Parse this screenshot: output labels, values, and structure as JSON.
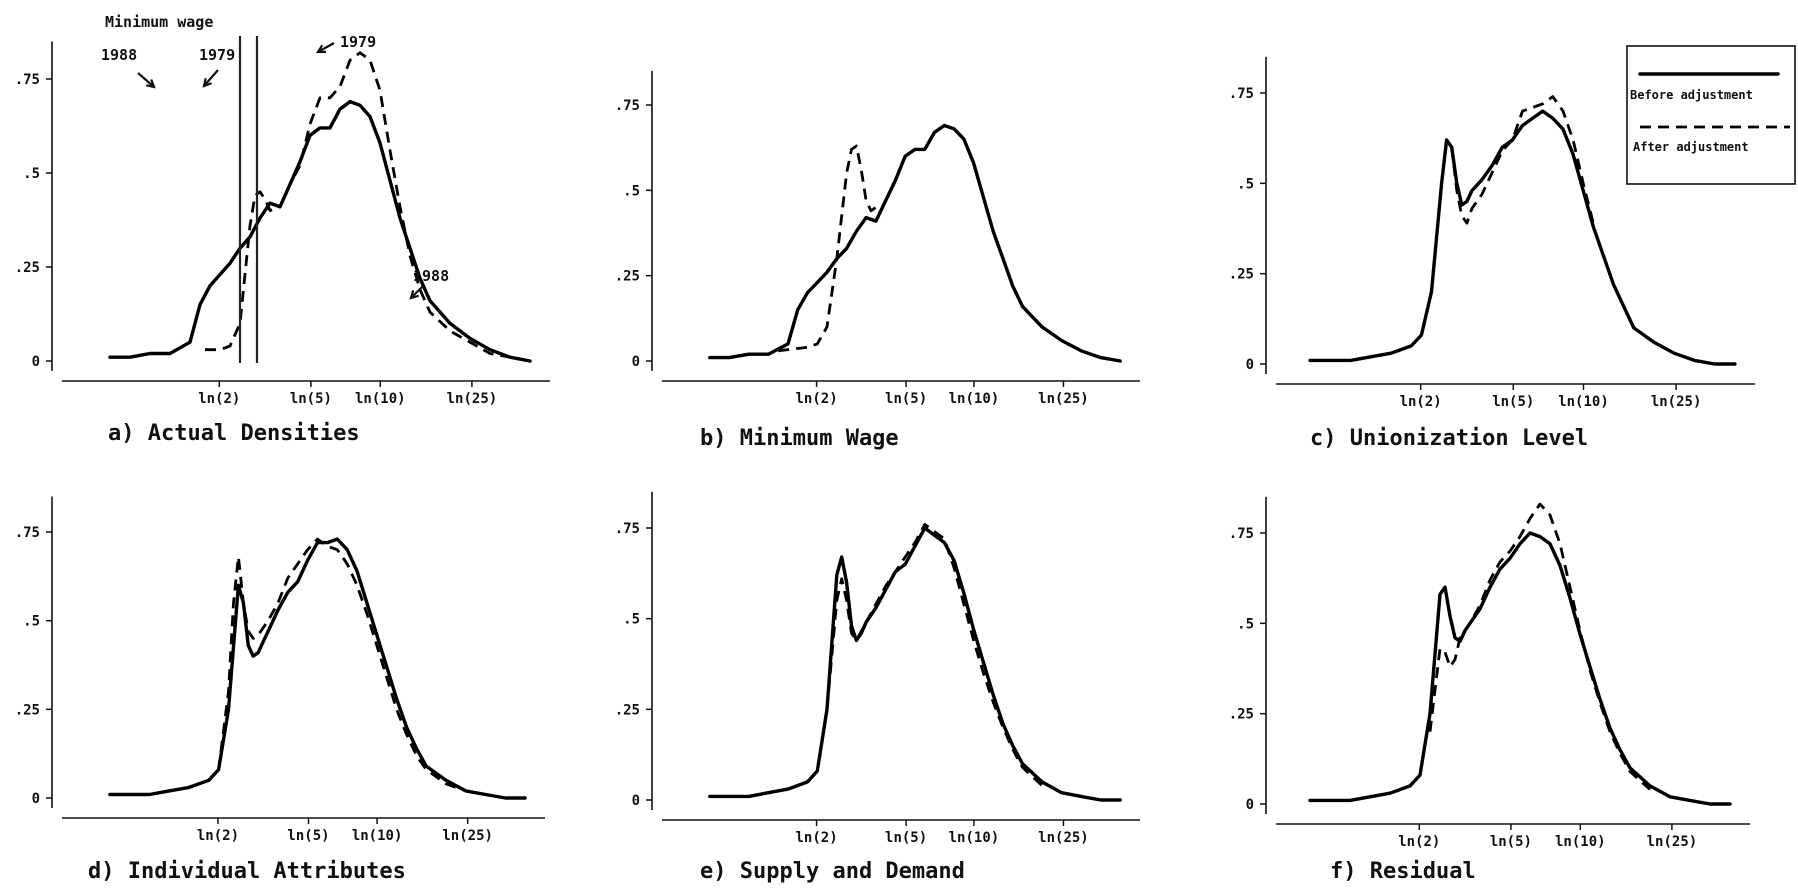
{
  "chart_data": [
    {
      "type": "line",
      "caption": "a) Actual Densities",
      "ylim": [
        0,
        0.85
      ],
      "yticks": [
        {
          "v": 0,
          "label": "0"
        },
        {
          "v": 0.25,
          "label": ".25"
        },
        {
          "v": 0.5,
          "label": ".5"
        },
        {
          "v": 0.75,
          "label": ".75"
        }
      ],
      "xticks": [
        {
          "v": 0.693,
          "label": "ln(2)"
        },
        {
          "v": 1.609,
          "label": "ln(5)"
        },
        {
          "v": 2.303,
          "label": "ln(10)"
        },
        {
          "v": 3.219,
          "label": "ln(25)"
        }
      ],
      "annotations": {
        "top": "Minimum wage",
        "left_year": "1988",
        "right_year": "1979",
        "dashed_year": "1979",
        "solid_year": "1988"
      },
      "min_wage_lines": [
        0.9,
        1.07
      ],
      "series": [
        {
          "style": "solid",
          "x": [
            -0.4,
            -0.2,
            0,
            0.2,
            0.4,
            0.5,
            0.6,
            0.7,
            0.8,
            0.9,
            1.0,
            1.1,
            1.2,
            1.3,
            1.4,
            1.5,
            1.6,
            1.7,
            1.8,
            1.9,
            2.0,
            2.1,
            2.2,
            2.3,
            2.4,
            2.5,
            2.6,
            2.7,
            2.8,
            3.0,
            3.2,
            3.4,
            3.6,
            3.8
          ],
          "y": [
            0.01,
            0.01,
            0.02,
            0.02,
            0.05,
            0.15,
            0.2,
            0.23,
            0.26,
            0.3,
            0.33,
            0.38,
            0.42,
            0.41,
            0.47,
            0.53,
            0.6,
            0.62,
            0.62,
            0.67,
            0.69,
            0.68,
            0.65,
            0.58,
            0.48,
            0.38,
            0.3,
            0.22,
            0.16,
            0.1,
            0.06,
            0.03,
            0.01,
            0.0
          ]
        },
        {
          "style": "dashed",
          "x": [
            0.55,
            0.7,
            0.8,
            0.9,
            1.0,
            1.05,
            1.1,
            1.15,
            1.2,
            1.3,
            1.4,
            1.5,
            1.6,
            1.7,
            1.8,
            1.9,
            2.0,
            2.1,
            2.2,
            2.3,
            2.4,
            2.5,
            2.6,
            2.7,
            2.8,
            3.0,
            3.2,
            3.4,
            3.6,
            3.8
          ],
          "y": [
            0.03,
            0.03,
            0.04,
            0.1,
            0.36,
            0.44,
            0.45,
            0.43,
            0.4,
            0.41,
            0.47,
            0.52,
            0.63,
            0.7,
            0.7,
            0.73,
            0.8,
            0.82,
            0.8,
            0.72,
            0.56,
            0.41,
            0.28,
            0.19,
            0.13,
            0.08,
            0.05,
            0.02,
            0.01,
            0.0
          ]
        }
      ]
    },
    {
      "type": "line",
      "caption": "b) Minimum Wage",
      "ylim": [
        0,
        0.85
      ],
      "yticks": [
        {
          "v": 0,
          "label": "0"
        },
        {
          "v": 0.25,
          "label": ".25"
        },
        {
          "v": 0.5,
          "label": ".5"
        },
        {
          "v": 0.75,
          "label": ".75"
        }
      ],
      "xticks": [
        {
          "v": 0.693,
          "label": "ln(2)"
        },
        {
          "v": 1.609,
          "label": "ln(5)"
        },
        {
          "v": 2.303,
          "label": "ln(10)"
        },
        {
          "v": 3.219,
          "label": "ln(25)"
        }
      ],
      "series": [
        {
          "style": "solid",
          "x": [
            -0.4,
            -0.2,
            0,
            0.2,
            0.4,
            0.5,
            0.6,
            0.7,
            0.8,
            0.9,
            1.0,
            1.1,
            1.2,
            1.3,
            1.4,
            1.5,
            1.6,
            1.7,
            1.8,
            1.9,
            2.0,
            2.1,
            2.2,
            2.3,
            2.4,
            2.5,
            2.6,
            2.7,
            2.8,
            3.0,
            3.2,
            3.4,
            3.6,
            3.8
          ],
          "y": [
            0.01,
            0.01,
            0.02,
            0.02,
            0.05,
            0.15,
            0.2,
            0.23,
            0.26,
            0.3,
            0.33,
            0.38,
            0.42,
            0.41,
            0.47,
            0.53,
            0.6,
            0.62,
            0.62,
            0.67,
            0.69,
            0.68,
            0.65,
            0.58,
            0.48,
            0.38,
            0.3,
            0.22,
            0.16,
            0.1,
            0.06,
            0.03,
            0.01,
            0.0
          ]
        },
        {
          "style": "dashed",
          "x": [
            0.3,
            0.6,
            0.7,
            0.8,
            0.9,
            1.0,
            1.05,
            1.1,
            1.15,
            1.2,
            1.25,
            1.3
          ],
          "y": [
            0.03,
            0.04,
            0.05,
            0.1,
            0.3,
            0.55,
            0.62,
            0.63,
            0.56,
            0.47,
            0.44,
            0.45
          ]
        }
      ]
    },
    {
      "type": "line",
      "caption": "c) Unionization Level",
      "ylim": [
        0,
        0.85
      ],
      "yticks": [
        {
          "v": 0,
          "label": "0"
        },
        {
          "v": 0.25,
          "label": ".25"
        },
        {
          "v": 0.5,
          "label": ".5"
        },
        {
          "v": 0.75,
          "label": ".75"
        }
      ],
      "xticks": [
        {
          "v": 0.693,
          "label": "ln(2)"
        },
        {
          "v": 1.609,
          "label": "ln(5)"
        },
        {
          "v": 2.303,
          "label": "ln(10)"
        },
        {
          "v": 3.219,
          "label": "ln(25)"
        }
      ],
      "legend": {
        "position": "top-right",
        "before": "Before adjustment",
        "after": "After adjustment"
      },
      "series": [
        {
          "style": "solid",
          "x": [
            -0.4,
            -0.2,
            0,
            0.2,
            0.4,
            0.6,
            0.7,
            0.8,
            0.9,
            0.95,
            1.0,
            1.05,
            1.1,
            1.15,
            1.2,
            1.3,
            1.4,
            1.5,
            1.6,
            1.7,
            1.8,
            1.9,
            2.0,
            2.1,
            2.2,
            2.3,
            2.4,
            2.5,
            2.6,
            2.7,
            2.8,
            3.0,
            3.2,
            3.4,
            3.6,
            3.8
          ],
          "y": [
            0.01,
            0.01,
            0.01,
            0.02,
            0.03,
            0.05,
            0.08,
            0.2,
            0.5,
            0.62,
            0.6,
            0.5,
            0.44,
            0.45,
            0.48,
            0.51,
            0.55,
            0.6,
            0.62,
            0.66,
            0.68,
            0.7,
            0.68,
            0.65,
            0.58,
            0.48,
            0.38,
            0.3,
            0.22,
            0.16,
            0.1,
            0.06,
            0.03,
            0.01,
            0.0,
            0.0
          ]
        },
        {
          "style": "dashed",
          "x": [
            1.0,
            1.05,
            1.1,
            1.15,
            1.2,
            1.3,
            1.4,
            1.5,
            1.6,
            1.7,
            1.8,
            1.9,
            2.0,
            2.1,
            2.2,
            2.3,
            2.4
          ],
          "y": [
            0.6,
            0.48,
            0.41,
            0.39,
            0.43,
            0.47,
            0.53,
            0.59,
            0.62,
            0.7,
            0.71,
            0.72,
            0.74,
            0.7,
            0.62,
            0.5,
            0.39
          ]
        }
      ]
    },
    {
      "type": "line",
      "caption": "d) Individual Attributes",
      "ylim": [
        0,
        0.85
      ],
      "yticks": [
        {
          "v": 0,
          "label": "0"
        },
        {
          "v": 0.25,
          "label": ".25"
        },
        {
          "v": 0.5,
          "label": ".5"
        },
        {
          "v": 0.75,
          "label": ".75"
        }
      ],
      "xticks": [
        {
          "v": 0.693,
          "label": "ln(2)"
        },
        {
          "v": 1.609,
          "label": "ln(5)"
        },
        {
          "v": 2.303,
          "label": "ln(10)"
        },
        {
          "v": 3.219,
          "label": "ln(25)"
        }
      ],
      "series": [
        {
          "style": "solid",
          "x": [
            -0.4,
            -0.2,
            0,
            0.2,
            0.4,
            0.6,
            0.7,
            0.8,
            0.9,
            0.95,
            1.0,
            1.05,
            1.1,
            1.15,
            1.2,
            1.3,
            1.4,
            1.5,
            1.6,
            1.7,
            1.8,
            1.9,
            2.0,
            2.1,
            2.2,
            2.3,
            2.4,
            2.5,
            2.6,
            2.7,
            2.8,
            3.0,
            3.2,
            3.4,
            3.6,
            3.8
          ],
          "y": [
            0.01,
            0.01,
            0.01,
            0.02,
            0.03,
            0.05,
            0.08,
            0.25,
            0.6,
            0.55,
            0.43,
            0.4,
            0.41,
            0.44,
            0.47,
            0.53,
            0.58,
            0.61,
            0.67,
            0.72,
            0.72,
            0.73,
            0.7,
            0.64,
            0.55,
            0.46,
            0.37,
            0.28,
            0.2,
            0.14,
            0.09,
            0.05,
            0.02,
            0.01,
            0.0,
            0.0
          ]
        },
        {
          "style": "dashed",
          "x": [
            0.7,
            0.8,
            0.85,
            0.9,
            0.95,
            1.0,
            1.05,
            1.1,
            1.2,
            1.3,
            1.4,
            1.5,
            1.6,
            1.7,
            1.8,
            1.9,
            2.0,
            2.1,
            2.2,
            2.3,
            2.4,
            2.5,
            2.6,
            2.7,
            2.8,
            3.0,
            3.2
          ],
          "y": [
            0.08,
            0.3,
            0.55,
            0.68,
            0.55,
            0.47,
            0.45,
            0.46,
            0.5,
            0.55,
            0.62,
            0.66,
            0.7,
            0.73,
            0.71,
            0.7,
            0.66,
            0.6,
            0.52,
            0.43,
            0.34,
            0.25,
            0.18,
            0.12,
            0.08,
            0.04,
            0.02
          ]
        }
      ]
    },
    {
      "type": "line",
      "caption": "e) Supply and Demand",
      "ylim": [
        0,
        0.85
      ],
      "yticks": [
        {
          "v": 0,
          "label": "0"
        },
        {
          "v": 0.25,
          "label": ".25"
        },
        {
          "v": 0.5,
          "label": ".5"
        },
        {
          "v": 0.75,
          "label": ".75"
        }
      ],
      "xticks": [
        {
          "v": 0.693,
          "label": "ln(2)"
        },
        {
          "v": 1.609,
          "label": "ln(5)"
        },
        {
          "v": 2.303,
          "label": "ln(10)"
        },
        {
          "v": 3.219,
          "label": "ln(25)"
        }
      ],
      "series": [
        {
          "style": "solid",
          "x": [
            -0.4,
            -0.2,
            0,
            0.2,
            0.4,
            0.6,
            0.7,
            0.8,
            0.9,
            0.95,
            1.0,
            1.05,
            1.1,
            1.15,
            1.2,
            1.3,
            1.4,
            1.5,
            1.6,
            1.7,
            1.8,
            1.9,
            2.0,
            2.1,
            2.2,
            2.3,
            2.4,
            2.5,
            2.6,
            2.7,
            2.8,
            3.0,
            3.2,
            3.4,
            3.6,
            3.8
          ],
          "y": [
            0.01,
            0.01,
            0.01,
            0.02,
            0.03,
            0.05,
            0.08,
            0.25,
            0.62,
            0.67,
            0.6,
            0.48,
            0.44,
            0.46,
            0.49,
            0.53,
            0.58,
            0.63,
            0.65,
            0.7,
            0.75,
            0.73,
            0.71,
            0.66,
            0.57,
            0.47,
            0.38,
            0.29,
            0.21,
            0.15,
            0.1,
            0.05,
            0.02,
            0.01,
            0.0,
            0.0
          ]
        },
        {
          "style": "dashed",
          "x": [
            0.8,
            0.9,
            0.95,
            1.0,
            1.05,
            1.1,
            1.2,
            1.3,
            1.4,
            1.5,
            1.6,
            1.7,
            1.8,
            1.9,
            2.0,
            2.1,
            2.2,
            2.3,
            2.4,
            2.5,
            2.6,
            2.7,
            2.8,
            3.0
          ],
          "y": [
            0.25,
            0.55,
            0.61,
            0.55,
            0.46,
            0.44,
            0.49,
            0.54,
            0.59,
            0.63,
            0.67,
            0.71,
            0.76,
            0.74,
            0.72,
            0.64,
            0.54,
            0.44,
            0.35,
            0.27,
            0.2,
            0.14,
            0.09,
            0.04
          ]
        }
      ]
    },
    {
      "type": "line",
      "caption": "f) Residual",
      "ylim": [
        0,
        0.85
      ],
      "yticks": [
        {
          "v": 0,
          "label": "0"
        },
        {
          "v": 0.25,
          "label": ".25"
        },
        {
          "v": 0.5,
          "label": ".5"
        },
        {
          "v": 0.75,
          "label": ".75"
        }
      ],
      "xticks": [
        {
          "v": 0.693,
          "label": "ln(2)"
        },
        {
          "v": 1.609,
          "label": "ln(5)"
        },
        {
          "v": 2.303,
          "label": "ln(10)"
        },
        {
          "v": 3.219,
          "label": "ln(25)"
        }
      ],
      "series": [
        {
          "style": "solid",
          "x": [
            -0.4,
            -0.2,
            0,
            0.2,
            0.4,
            0.6,
            0.7,
            0.8,
            0.9,
            0.95,
            1.0,
            1.05,
            1.1,
            1.15,
            1.2,
            1.3,
            1.4,
            1.5,
            1.6,
            1.7,
            1.8,
            1.9,
            2.0,
            2.1,
            2.2,
            2.3,
            2.4,
            2.5,
            2.6,
            2.7,
            2.8,
            3.0,
            3.2,
            3.4,
            3.6,
            3.8
          ],
          "y": [
            0.01,
            0.01,
            0.01,
            0.02,
            0.03,
            0.05,
            0.08,
            0.25,
            0.58,
            0.6,
            0.52,
            0.46,
            0.45,
            0.48,
            0.5,
            0.54,
            0.6,
            0.65,
            0.68,
            0.72,
            0.75,
            0.74,
            0.72,
            0.66,
            0.57,
            0.47,
            0.38,
            0.29,
            0.21,
            0.15,
            0.1,
            0.05,
            0.02,
            0.01,
            0.0,
            0.0
          ]
        },
        {
          "style": "dashed",
          "x": [
            0.8,
            0.9,
            0.95,
            1.0,
            1.05,
            1.1,
            1.2,
            1.3,
            1.4,
            1.5,
            1.6,
            1.7,
            1.8,
            1.9,
            2.0,
            2.1,
            2.2,
            2.3,
            2.4,
            2.5,
            2.6,
            2.7,
            2.8,
            3.0
          ],
          "y": [
            0.2,
            0.43,
            0.42,
            0.38,
            0.4,
            0.46,
            0.5,
            0.55,
            0.62,
            0.67,
            0.7,
            0.74,
            0.79,
            0.83,
            0.8,
            0.72,
            0.6,
            0.48,
            0.37,
            0.28,
            0.2,
            0.14,
            0.09,
            0.04
          ]
        }
      ]
    }
  ]
}
